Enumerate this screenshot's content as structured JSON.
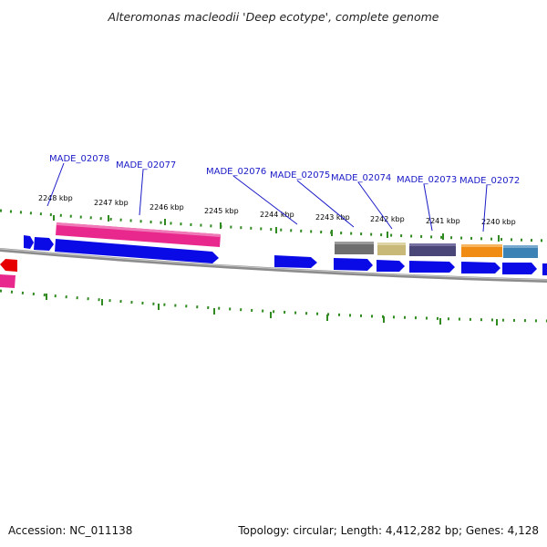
{
  "title": "Alteromonas macleodii 'Deep ecotype', complete genome",
  "footer": {
    "accession": "Accession: NC_011138",
    "summary": "Topology: circular; Length: 4,412,282 bp; Genes: 4,128"
  },
  "scale_labels": [
    "2248 kbp",
    "2247 kbp",
    "2246 kbp",
    "2245 kbp",
    "2244 kbp",
    "2243 kbp",
    "2242 kbp",
    "2241 kbp",
    "2240 kbp"
  ],
  "loci": [
    "MADE_02078",
    "MADE_02077",
    "MADE_02076",
    "MADE_02075",
    "MADE_02074",
    "MADE_02073",
    "MADE_02072"
  ],
  "colors": {
    "cds": "#0a0ae6",
    "cds_highlight": "#e8288c",
    "backbone": "#8c8c8c",
    "ticks": "#2f8a1f",
    "locus_text": "#1a1ac8",
    "reverse_feature": "#e60000",
    "feature_gray": "#6e6e6e",
    "feature_khaki": "#c8b978",
    "feature_slate": "#4b4678",
    "feature_orange": "#f08c14",
    "feature_steelblue": "#3c82b4"
  }
}
